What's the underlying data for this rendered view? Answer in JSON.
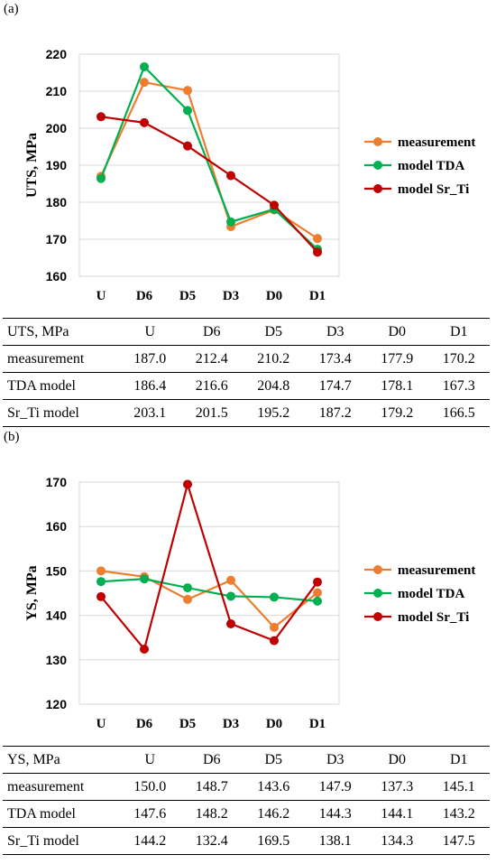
{
  "panels": [
    {
      "label": "(a)",
      "table": {
        "header": [
          "UTS, MPa",
          "U",
          "D6",
          "D5",
          "D3",
          "D0",
          "D1"
        ],
        "rows": [
          [
            "measurement",
            "187.0",
            "212.4",
            "210.2",
            "173.4",
            "177.9",
            "170.2"
          ],
          [
            "TDA model",
            "186.4",
            "216.6",
            "204.8",
            "174.7",
            "178.1",
            "167.3"
          ],
          [
            "Sr_Ti model",
            "203.1",
            "201.5",
            "195.2",
            "187.2",
            "179.2",
            "166.5"
          ]
        ]
      }
    },
    {
      "label": "(b)",
      "table": {
        "header": [
          "YS, MPa",
          "U",
          "D6",
          "D5",
          "D3",
          "D0",
          "D1"
        ],
        "rows": [
          [
            "measurement",
            "150.0",
            "148.7",
            "143.6",
            "147.9",
            "137.3",
            "145.1"
          ],
          [
            "TDA model",
            "147.6",
            "148.2",
            "146.2",
            "144.3",
            "144.1",
            "143.2"
          ],
          [
            "Sr_Ti model",
            "144.2",
            "132.4",
            "169.5",
            "138.1",
            "134.3",
            "147.5"
          ]
        ]
      }
    }
  ],
  "chart_data": [
    {
      "type": "line",
      "title": "",
      "xlabel": "",
      "ylabel": "UTS, MPa",
      "categories": [
        "U",
        "D6",
        "D5",
        "D3",
        "D0",
        "D1"
      ],
      "ylim": [
        160,
        220
      ],
      "yticks": [
        160,
        170,
        180,
        190,
        200,
        210,
        220
      ],
      "grid": "horizontal",
      "legend_position": "right",
      "series": [
        {
          "name": "measurement",
          "color": "#ED7D31",
          "values": [
            187.0,
            212.4,
            210.2,
            173.4,
            177.9,
            170.2
          ]
        },
        {
          "name": "model TDA",
          "color": "#00B050",
          "values": [
            186.4,
            216.6,
            204.8,
            174.7,
            178.1,
            167.3
          ]
        },
        {
          "name": "model Sr_Ti",
          "color": "#C00000",
          "values": [
            203.1,
            201.5,
            195.2,
            187.2,
            179.2,
            166.5
          ]
        }
      ]
    },
    {
      "type": "line",
      "title": "",
      "xlabel": "",
      "ylabel": "YS, MPa",
      "categories": [
        "U",
        "D6",
        "D5",
        "D3",
        "D0",
        "D1"
      ],
      "ylim": [
        120,
        170
      ],
      "yticks": [
        120,
        130,
        140,
        150,
        160,
        170
      ],
      "grid": "horizontal",
      "legend_position": "right",
      "series": [
        {
          "name": "measurement",
          "color": "#ED7D31",
          "values": [
            150.0,
            148.7,
            143.6,
            147.9,
            137.3,
            145.1
          ]
        },
        {
          "name": "model TDA",
          "color": "#00B050",
          "values": [
            147.6,
            148.2,
            146.2,
            144.3,
            144.1,
            143.2
          ]
        },
        {
          "name": "model Sr_Ti",
          "color": "#C00000",
          "values": [
            144.2,
            132.4,
            169.5,
            138.1,
            134.3,
            147.5
          ]
        }
      ]
    }
  ]
}
